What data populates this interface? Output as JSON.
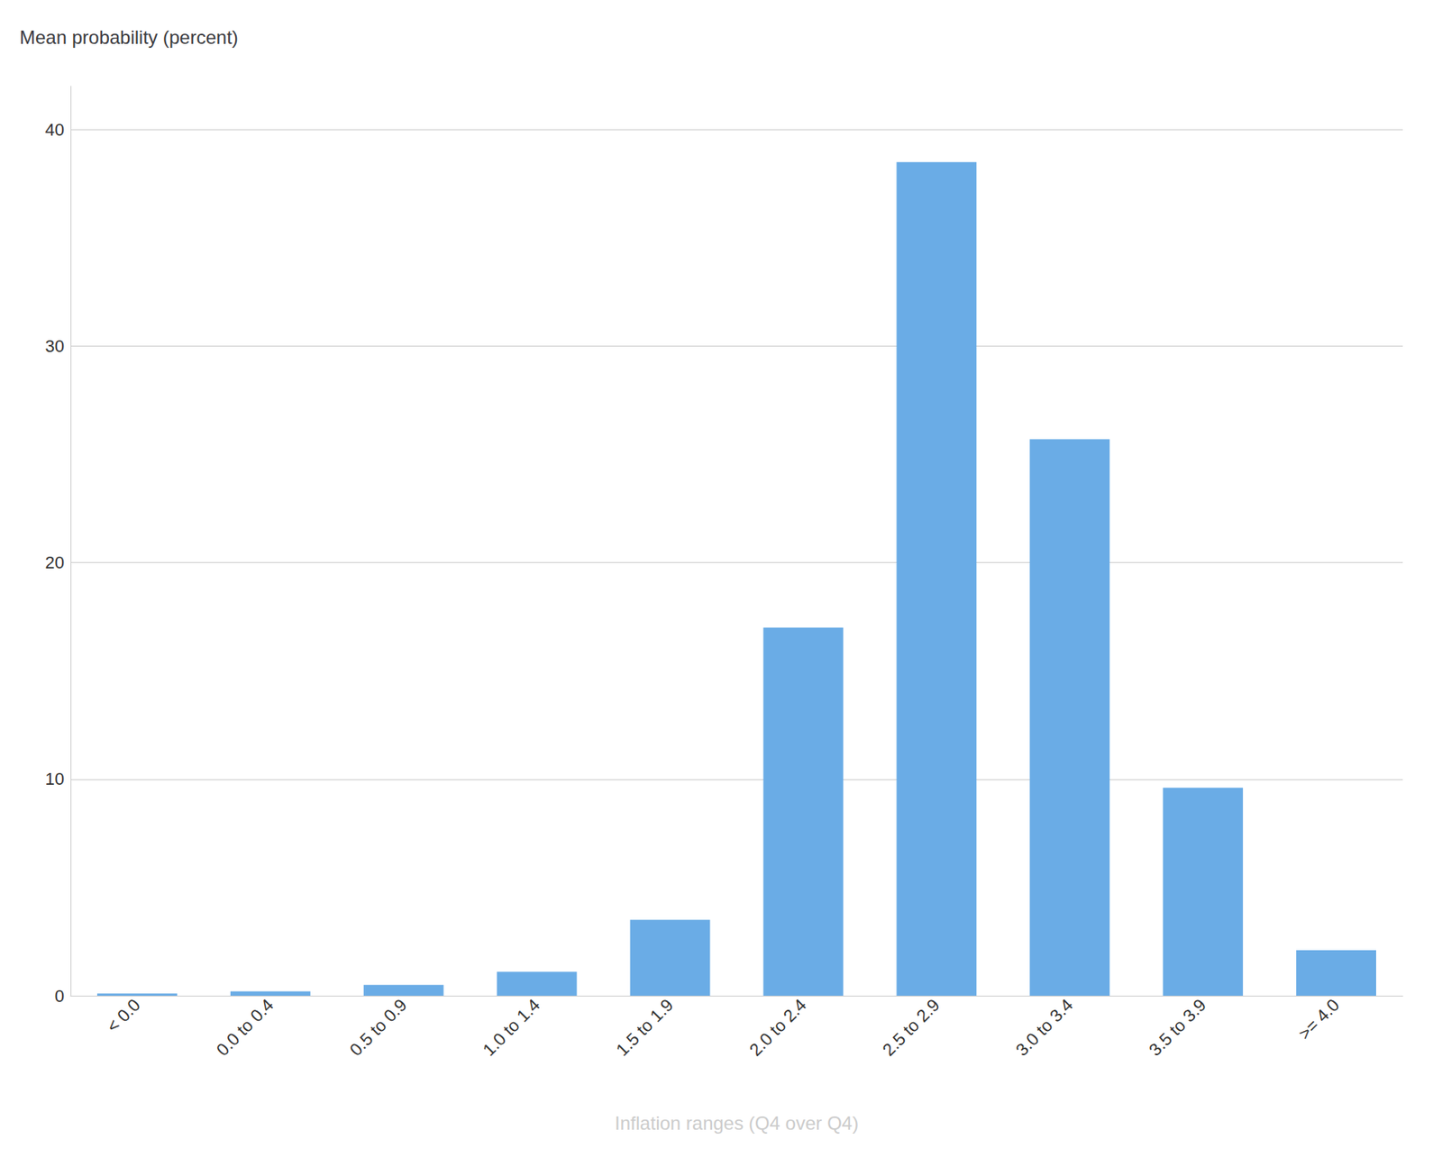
{
  "chart_data": {
    "type": "bar",
    "title": "Mean probability (percent)",
    "xlabel": "Inflation ranges (Q4 over Q4)",
    "categories": [
      "< 0.0",
      "0.0 to 0.4",
      "0.5 to 0.9",
      "1.0 to 1.4",
      "1.5 to 1.9",
      "2.0 to 2.4",
      "2.5 to 2.9",
      "3.0 to 3.4",
      "3.5 to 3.9",
      ">= 4.0"
    ],
    "values": [
      0.1,
      0.2,
      0.5,
      1.1,
      3.5,
      17.0,
      38.5,
      25.7,
      9.6,
      2.1
    ],
    "color": "#6aace6",
    "ylim": [
      0,
      42
    ],
    "yticks": [
      0,
      10,
      20,
      30,
      40
    ],
    "grid": true
  }
}
